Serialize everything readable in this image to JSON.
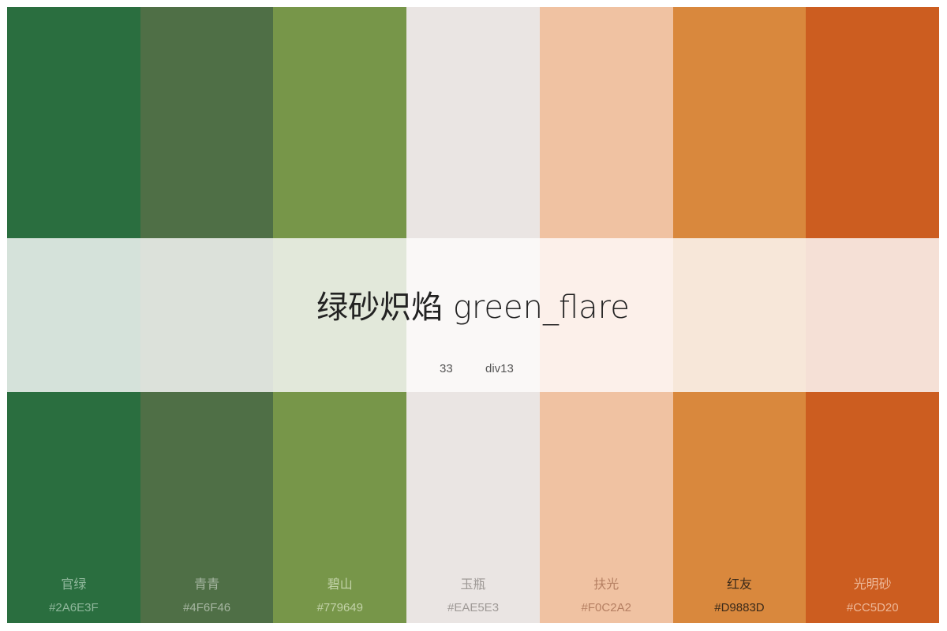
{
  "palette": {
    "title": "绿砂炽焰 green_flare",
    "count": "33",
    "code": "div13",
    "colors": [
      {
        "name": "官绿",
        "hex": "#2A6E3F",
        "color": "#2A6E3F",
        "band": "#D5E2DA",
        "text": "#8FB79B"
      },
      {
        "name": "青青",
        "hex": "#4F6F46",
        "color": "#4F6F46",
        "band": "#DCE1DA",
        "text": "#A6B6A1"
      },
      {
        "name": "碧山",
        "hex": "#779649",
        "color": "#779649",
        "band": "#E2E8DA",
        "text": "#C2D2A8"
      },
      {
        "name": "玉瓶",
        "hex": "#EAE5E3",
        "color": "#EAE5E3",
        "band": "#FAF8F7",
        "text": "#9E9996"
      },
      {
        "name": "扶光",
        "hex": "#F0C2A2",
        "color": "#F0C2A2",
        "band": "#FCF0EA",
        "text": "#B57F62"
      },
      {
        "name": "红友",
        "hex": "#D9883D",
        "color": "#D9883D",
        "band": "#F7E7D9",
        "text": "#3B2A1A"
      },
      {
        "name": "光明砂",
        "hex": "#CC5D20",
        "color": "#CC5D20",
        "band": "#F5E0D6",
        "text": "#EDB899"
      }
    ]
  }
}
